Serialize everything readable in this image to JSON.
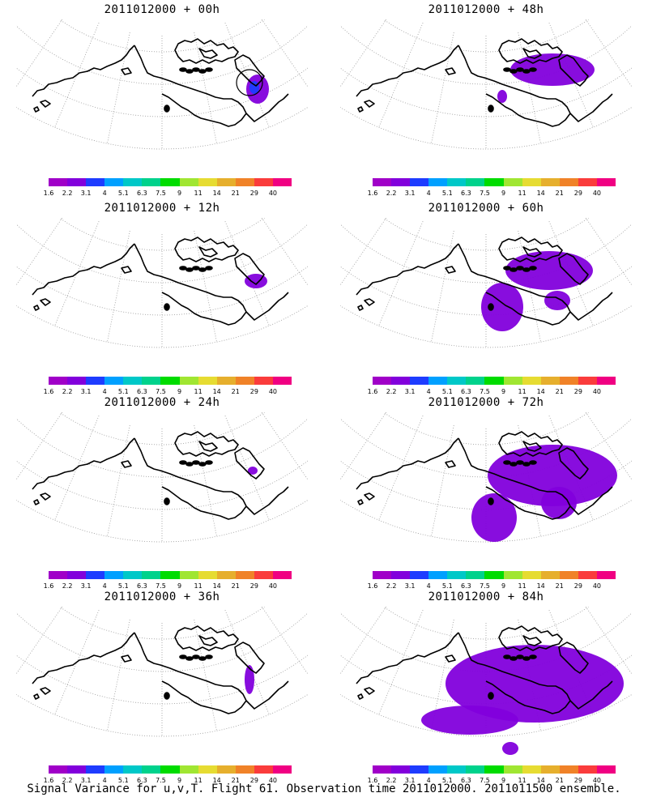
{
  "colorbar": {
    "colors": [
      "#a000c8",
      "#8200dc",
      "#1e3cff",
      "#00a0ff",
      "#00c8c8",
      "#00d28c",
      "#00dc00",
      "#a0e632",
      "#e6dc32",
      "#e6af2d",
      "#f08228",
      "#fa3c3c",
      "#f00082"
    ],
    "labels": [
      "1.6",
      "2.2",
      "3.1",
      "4",
      "5.1",
      "6.3",
      "7.5",
      "9",
      "11",
      "14",
      "21",
      "29",
      "40"
    ]
  },
  "panels": [
    {
      "title": "2011012000 + 00h",
      "blobs": [
        {
          "cx": 298,
          "cy": 86,
          "rx": 14,
          "ry": 18,
          "color": "#8200dc"
        },
        {
          "cx": 294,
          "cy": 84,
          "rx": 6,
          "ry": 8,
          "color": "#1e3cff"
        }
      ],
      "circle": true
    },
    {
      "title": "2011012000 + 48h",
      "blobs": [
        {
          "cx": 262,
          "cy": 62,
          "rx": 52,
          "ry": 20,
          "color": "#8200dc"
        },
        {
          "cx": 200,
          "cy": 95,
          "rx": 6,
          "ry": 8,
          "color": "#8200dc"
        }
      ],
      "circle": false
    },
    {
      "title": "2011012000 + 12h",
      "blobs": [
        {
          "cx": 296,
          "cy": 78,
          "rx": 14,
          "ry": 9,
          "color": "#8200dc"
        }
      ],
      "circle": false
    },
    {
      "title": "2011012000 + 60h",
      "blobs": [
        {
          "cx": 258,
          "cy": 65,
          "rx": 54,
          "ry": 24,
          "color": "#8200dc"
        },
        {
          "cx": 200,
          "cy": 110,
          "rx": 26,
          "ry": 30,
          "color": "#8200dc"
        },
        {
          "cx": 268,
          "cy": 102,
          "rx": 16,
          "ry": 12,
          "color": "#8200dc"
        }
      ],
      "circle": false
    },
    {
      "title": "2011012000 + 24h",
      "blobs": [
        {
          "cx": 292,
          "cy": 72,
          "rx": 6,
          "ry": 5,
          "color": "#8200dc"
        }
      ],
      "circle": false
    },
    {
      "title": "2011012000 + 72h",
      "blobs": [
        {
          "cx": 262,
          "cy": 78,
          "rx": 80,
          "ry": 38,
          "color": "#8200dc"
        },
        {
          "cx": 190,
          "cy": 130,
          "rx": 28,
          "ry": 30,
          "color": "#8200dc"
        },
        {
          "cx": 270,
          "cy": 112,
          "rx": 22,
          "ry": 20,
          "color": "#8200dc"
        },
        {
          "cx": 196,
          "cy": 198,
          "rx": 5,
          "ry": 4,
          "color": "#8200dc"
        }
      ],
      "circle": false
    },
    {
      "title": "2011012000 + 36h",
      "blobs": [
        {
          "cx": 288,
          "cy": 90,
          "rx": 6,
          "ry": 18,
          "color": "#8200dc"
        }
      ],
      "circle": false
    },
    {
      "title": "2011012000 + 84h",
      "blobs": [
        {
          "cx": 240,
          "cy": 95,
          "rx": 110,
          "ry": 48,
          "color": "#8200dc"
        },
        {
          "cx": 160,
          "cy": 140,
          "rx": 60,
          "ry": 18,
          "color": "#8200dc"
        },
        {
          "cx": 210,
          "cy": 175,
          "rx": 10,
          "ry": 8,
          "color": "#8200dc"
        }
      ],
      "circle": false
    }
  ],
  "footer": "Signal Variance for u,v,T. Flight 61. Observation time 2011012000. 2011011500 ensemble."
}
